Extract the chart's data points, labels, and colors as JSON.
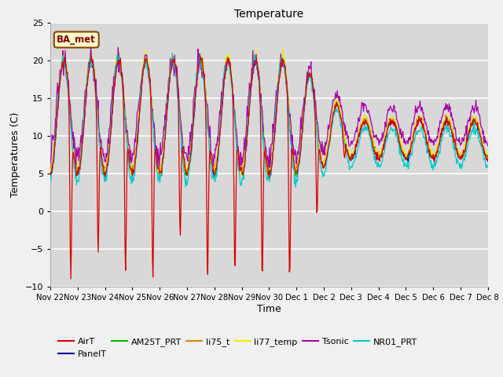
{
  "title": "Temperature",
  "ylabel": "Temperatures (C)",
  "xlabel": "Time",
  "ylim": [
    -10,
    25
  ],
  "yticks": [
    -10,
    -5,
    0,
    5,
    10,
    15,
    20,
    25
  ],
  "n_days": 16,
  "series_colors": {
    "AirT": "#dd0000",
    "PanelT": "#000099",
    "AM25T_PRT": "#00bb00",
    "li75_t": "#dd8800",
    "li77_temp": "#eeee00",
    "Tsonic": "#aa00aa",
    "NR01_PRT": "#00cccc"
  },
  "annotation_text": "BA_met",
  "annotation_bg": "#ffffcc",
  "annotation_border": "#884400",
  "fig_bg": "#f0f0f0",
  "plot_bg": "#d8d8d8",
  "grid_color": "#ffffff"
}
